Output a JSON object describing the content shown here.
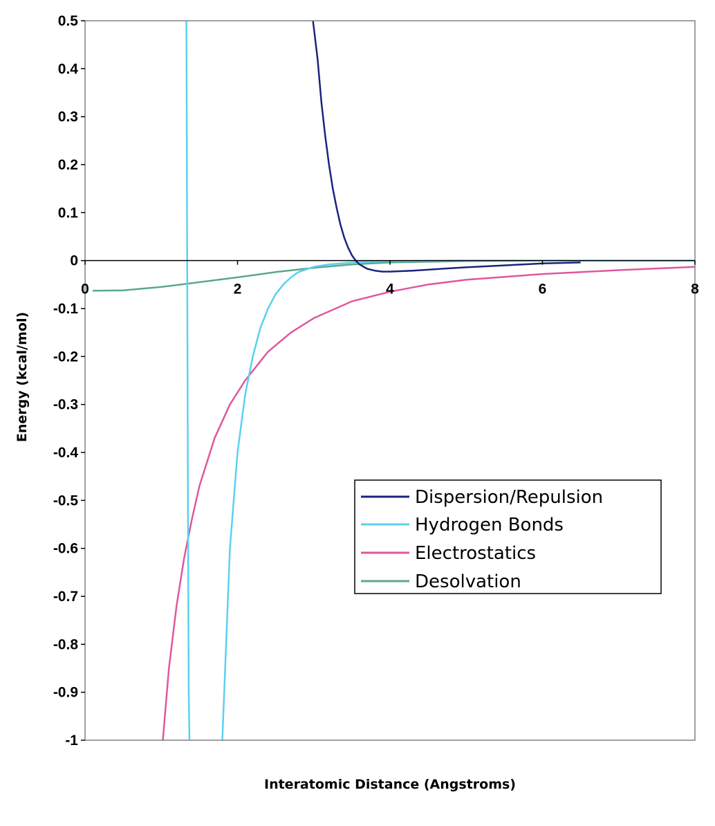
{
  "chart_data": {
    "type": "line",
    "xlabel": "Interatomic Distance (Angstroms)",
    "ylabel": "Energy (kcal/mol)",
    "xlim": [
      0,
      8
    ],
    "ylim": [
      -1,
      0.5
    ],
    "x_ticks": [
      "0",
      "2",
      "4",
      "6",
      "8"
    ],
    "y_ticks": [
      "0.5",
      "0.4",
      "0.3",
      "0.2",
      "0.1",
      "0",
      "-0.1",
      "-0.2",
      "-0.3",
      "-0.4",
      "-0.5",
      "-0.6",
      "-0.7",
      "-0.8",
      "-0.9",
      "-1"
    ],
    "grid": false,
    "legend_position": "lower-right",
    "series": [
      {
        "name": "Dispersion/Repulsion",
        "color": "#1a237e",
        "points": [
          [
            2.99,
            0.5
          ],
          [
            3.05,
            0.42
          ],
          [
            3.1,
            0.33
          ],
          [
            3.15,
            0.26
          ],
          [
            3.2,
            0.2
          ],
          [
            3.25,
            0.15
          ],
          [
            3.3,
            0.11
          ],
          [
            3.35,
            0.075
          ],
          [
            3.4,
            0.048
          ],
          [
            3.45,
            0.027
          ],
          [
            3.5,
            0.011
          ],
          [
            3.55,
            0.0
          ],
          [
            3.6,
            -0.008
          ],
          [
            3.7,
            -0.017
          ],
          [
            3.8,
            -0.021
          ],
          [
            3.9,
            -0.023
          ],
          [
            4.0,
            -0.023
          ],
          [
            4.3,
            -0.021
          ],
          [
            4.6,
            -0.018
          ],
          [
            5.0,
            -0.014
          ],
          [
            5.5,
            -0.01
          ],
          [
            6.0,
            -0.006
          ],
          [
            6.5,
            -0.004
          ]
        ]
      },
      {
        "name": "Hydrogen Bonds",
        "color": "#5bd0f2",
        "points": [
          [
            1.33,
            0.5
          ],
          [
            1.34,
            0.0
          ],
          [
            1.35,
            -0.5
          ],
          [
            1.36,
            -0.9
          ],
          [
            1.37,
            -1.0
          ],
          [
            null,
            null
          ],
          [
            1.8,
            -1.0
          ],
          [
            1.85,
            -0.8
          ],
          [
            1.9,
            -0.6
          ],
          [
            2.0,
            -0.4
          ],
          [
            2.1,
            -0.28
          ],
          [
            2.2,
            -0.2
          ],
          [
            2.3,
            -0.14
          ],
          [
            2.4,
            -0.1
          ],
          [
            2.5,
            -0.07
          ],
          [
            2.6,
            -0.05
          ],
          [
            2.7,
            -0.035
          ],
          [
            2.8,
            -0.024
          ],
          [
            3.0,
            -0.013
          ],
          [
            3.2,
            -0.008
          ],
          [
            3.5,
            -0.004
          ],
          [
            4.0,
            -0.001
          ],
          [
            5.0,
            0.0
          ],
          [
            8.0,
            0.0
          ]
        ]
      },
      {
        "name": "Electrostatics",
        "color": "#e0579c",
        "points": [
          [
            1.02,
            -1.0
          ],
          [
            1.1,
            -0.85
          ],
          [
            1.2,
            -0.72
          ],
          [
            1.3,
            -0.62
          ],
          [
            1.4,
            -0.54
          ],
          [
            1.5,
            -0.47
          ],
          [
            1.7,
            -0.37
          ],
          [
            1.9,
            -0.3
          ],
          [
            2.1,
            -0.25
          ],
          [
            2.4,
            -0.19
          ],
          [
            2.7,
            -0.15
          ],
          [
            3.0,
            -0.12
          ],
          [
            3.5,
            -0.085
          ],
          [
            4.0,
            -0.065
          ],
          [
            4.5,
            -0.05
          ],
          [
            5.0,
            -0.04
          ],
          [
            6.0,
            -0.028
          ],
          [
            7.0,
            -0.02
          ],
          [
            8.0,
            -0.013
          ]
        ]
      },
      {
        "name": "Desolvation",
        "color": "#5aa889",
        "points": [
          [
            0.1,
            -0.063
          ],
          [
            0.5,
            -0.062
          ],
          [
            1.0,
            -0.055
          ],
          [
            1.5,
            -0.045
          ],
          [
            2.0,
            -0.035
          ],
          [
            2.5,
            -0.024
          ],
          [
            3.0,
            -0.015
          ],
          [
            3.5,
            -0.008
          ],
          [
            4.0,
            -0.004
          ],
          [
            5.0,
            -0.001
          ],
          [
            6.0,
            0.0
          ],
          [
            8.0,
            0.0
          ]
        ]
      }
    ]
  }
}
